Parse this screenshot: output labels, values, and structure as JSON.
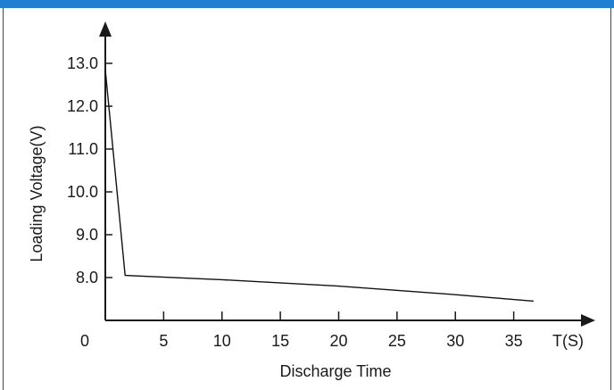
{
  "header_bar_color": "#1f7fd0",
  "chart_data": {
    "type": "line",
    "title": "",
    "xlabel": "Discharge Time",
    "ylabel": "Loading Voltage(V)",
    "x_unit_label": "T(S)",
    "origin_label": "0",
    "x_ticks": [
      5,
      10,
      15,
      20,
      25,
      30,
      35
    ],
    "x_tick_labels": [
      "5",
      "10",
      "15",
      "20",
      "25",
      "30",
      "35"
    ],
    "y_ticks": [
      8.0,
      9.0,
      10.0,
      11.0,
      12.0,
      13.0
    ],
    "y_tick_labels": [
      "8.0",
      "9.0",
      "10.0",
      "11.0",
      "12.0",
      "13.0"
    ],
    "xlim": [
      0,
      40
    ],
    "ylim": [
      7.0,
      14.0
    ],
    "grid": false,
    "series": [
      {
        "x": [
          0,
          1.7,
          10,
          20,
          30,
          36.7
        ],
        "y": [
          12.85,
          8.05,
          7.95,
          7.8,
          7.6,
          7.45
        ]
      }
    ],
    "line_color": "#111111",
    "axis_color": "#1a1a1a"
  }
}
